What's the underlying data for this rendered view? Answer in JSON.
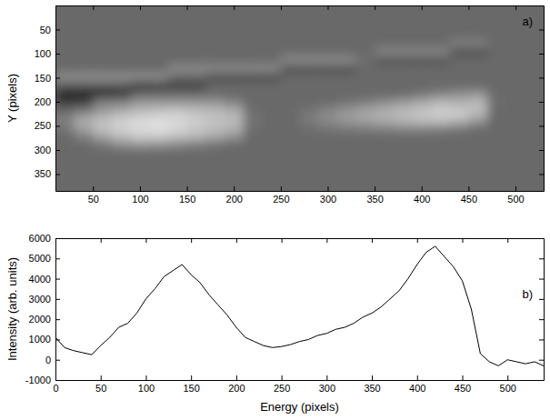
{
  "chart_data": [
    {
      "type": "image",
      "annotation": "a)",
      "ylabel": "Y (pixels)",
      "xlim": [
        10,
        530
      ],
      "ylim": [
        385,
        0
      ],
      "xticks": [
        50,
        100,
        150,
        200,
        250,
        300,
        350,
        400,
        450,
        500
      ],
      "yticks": [
        50,
        100,
        150,
        200,
        250,
        300,
        350
      ],
      "grid": false,
      "x_edges": [
        10,
        30,
        50,
        70,
        90,
        110,
        130,
        150,
        170,
        190,
        210,
        230,
        250,
        270,
        290,
        310,
        330,
        350,
        370,
        390,
        410,
        430,
        450,
        470,
        490,
        510,
        530
      ],
      "y_edges": [
        0,
        17.5,
        35,
        52.5,
        70,
        87.5,
        105,
        122.5,
        140,
        157.5,
        175,
        192.5,
        210,
        227.5,
        245,
        262.5,
        280,
        297.5,
        315,
        332.5,
        350,
        367.5,
        385
      ],
      "values": [
        [
          105,
          105,
          105,
          105,
          105,
          105,
          105,
          105,
          105,
          105,
          105,
          105,
          105,
          105,
          105,
          105,
          105,
          105,
          105,
          105,
          105,
          105,
          105,
          105,
          105,
          105
        ],
        [
          105,
          105,
          105,
          105,
          105,
          105,
          105,
          105,
          105,
          105,
          105,
          105,
          105,
          105,
          105,
          105,
          105,
          105,
          105,
          105,
          105,
          105,
          105,
          105,
          105,
          105
        ],
        [
          105,
          105,
          105,
          105,
          105,
          105,
          105,
          105,
          105,
          105,
          105,
          105,
          105,
          105,
          105,
          105,
          105,
          105,
          105,
          105,
          105,
          105,
          105,
          105,
          105,
          105
        ],
        [
          105,
          105,
          105,
          105,
          105,
          105,
          105,
          105,
          105,
          105,
          105,
          105,
          105,
          105,
          105,
          105,
          105,
          105,
          105,
          105,
          105,
          105,
          105,
          105,
          105,
          105
        ],
        [
          105,
          105,
          105,
          105,
          105,
          105,
          105,
          105,
          105,
          105,
          105,
          105,
          105,
          105,
          105,
          105,
          105,
          105,
          105,
          105,
          105,
          130,
          130,
          105,
          105,
          105
        ],
        [
          105,
          105,
          105,
          105,
          105,
          105,
          105,
          105,
          105,
          105,
          105,
          105,
          105,
          105,
          105,
          105,
          105,
          135,
          135,
          135,
          135,
          80,
          80,
          105,
          105,
          105
        ],
        [
          105,
          105,
          105,
          105,
          105,
          105,
          105,
          105,
          105,
          105,
          105,
          105,
          140,
          140,
          140,
          140,
          110,
          85,
          85,
          85,
          85,
          105,
          105,
          105,
          105,
          105
        ],
        [
          105,
          105,
          105,
          105,
          105,
          105,
          140,
          140,
          140,
          140,
          140,
          140,
          80,
          80,
          80,
          80,
          105,
          105,
          105,
          105,
          105,
          105,
          105,
          105,
          105,
          105
        ],
        [
          145,
          145,
          145,
          145,
          145,
          145,
          105,
          105,
          75,
          75,
          75,
          75,
          105,
          105,
          105,
          105,
          105,
          105,
          105,
          105,
          105,
          105,
          105,
          105,
          105,
          105
        ],
        [
          90,
          90,
          90,
          90,
          50,
          55,
          65,
          65,
          105,
          105,
          105,
          105,
          105,
          105,
          105,
          105,
          105,
          105,
          105,
          105,
          105,
          105,
          105,
          105,
          105,
          105
        ],
        [
          30,
          30,
          35,
          45,
          105,
          105,
          105,
          105,
          105,
          105,
          105,
          105,
          105,
          105,
          105,
          105,
          105,
          105,
          105,
          115,
          130,
          145,
          150,
          105,
          105,
          105
        ],
        [
          60,
          65,
          130,
          130,
          150,
          150,
          150,
          150,
          150,
          130,
          105,
          105,
          105,
          105,
          105,
          115,
          125,
          140,
          155,
          170,
          185,
          175,
          185,
          110,
          105,
          105
        ],
        [
          105,
          120,
          150,
          170,
          185,
          195,
          200,
          190,
          185,
          175,
          110,
          105,
          105,
          115,
          135,
          150,
          165,
          175,
          185,
          195,
          205,
          205,
          190,
          105,
          105,
          105
        ],
        [
          130,
          170,
          190,
          205,
          215,
          220,
          215,
          205,
          195,
          185,
          115,
          105,
          105,
          125,
          140,
          155,
          165,
          175,
          185,
          195,
          200,
          190,
          160,
          105,
          105,
          105
        ],
        [
          120,
          165,
          195,
          210,
          220,
          225,
          215,
          200,
          190,
          180,
          110,
          105,
          105,
          110,
          120,
          125,
          130,
          135,
          140,
          140,
          135,
          125,
          110,
          105,
          105,
          105
        ],
        [
          105,
          130,
          165,
          190,
          205,
          205,
          195,
          185,
          170,
          150,
          105,
          105,
          105,
          105,
          105,
          105,
          105,
          105,
          105,
          105,
          105,
          105,
          105,
          105,
          105,
          105
        ],
        [
          105,
          105,
          120,
          140,
          150,
          145,
          135,
          125,
          115,
          105,
          105,
          105,
          105,
          105,
          105,
          105,
          105,
          105,
          105,
          105,
          105,
          105,
          105,
          105,
          105,
          105
        ],
        [
          105,
          105,
          105,
          105,
          105,
          105,
          105,
          105,
          105,
          105,
          105,
          105,
          105,
          105,
          105,
          105,
          105,
          105,
          105,
          105,
          105,
          105,
          105,
          105,
          105,
          105
        ],
        [
          105,
          105,
          105,
          105,
          105,
          105,
          105,
          105,
          105,
          105,
          105,
          105,
          105,
          105,
          105,
          105,
          105,
          105,
          105,
          105,
          105,
          105,
          105,
          105,
          105,
          105
        ],
        [
          105,
          105,
          105,
          105,
          105,
          105,
          105,
          105,
          105,
          105,
          105,
          105,
          105,
          105,
          105,
          105,
          105,
          105,
          105,
          105,
          105,
          105,
          105,
          105,
          105,
          105
        ],
        [
          105,
          105,
          105,
          105,
          105,
          105,
          105,
          105,
          105,
          105,
          105,
          105,
          105,
          105,
          105,
          105,
          105,
          105,
          105,
          105,
          105,
          105,
          105,
          105,
          105,
          105
        ],
        [
          105,
          105,
          105,
          105,
          105,
          105,
          105,
          105,
          105,
          105,
          105,
          105,
          105,
          105,
          105,
          105,
          105,
          105,
          105,
          105,
          105,
          105,
          105,
          105,
          105,
          105
        ]
      ]
    },
    {
      "type": "line",
      "annotation": "b)",
      "xlabel": "Energy (pixels)",
      "ylabel": "Intensity (arb. units)",
      "color": "#000000",
      "xlim": [
        0,
        540
      ],
      "ylim": [
        -1000,
        6000
      ],
      "xticks": [
        0,
        50,
        100,
        150,
        200,
        250,
        300,
        350,
        400,
        450,
        500
      ],
      "yticks": [
        -1000,
        0,
        1000,
        2000,
        3000,
        4000,
        5000,
        6000
      ],
      "grid": false,
      "x": [
        0,
        10,
        20,
        30,
        40,
        50,
        60,
        70,
        80,
        90,
        100,
        110,
        120,
        130,
        140,
        150,
        160,
        170,
        180,
        190,
        200,
        210,
        220,
        230,
        240,
        250,
        260,
        270,
        280,
        290,
        300,
        310,
        320,
        330,
        340,
        350,
        360,
        370,
        380,
        390,
        400,
        410,
        420,
        430,
        440,
        450,
        460,
        470,
        480,
        490,
        500,
        510,
        520,
        530,
        540
      ],
      "values": [
        1100,
        600,
        450,
        350,
        250,
        700,
        1100,
        1600,
        1800,
        2300,
        3000,
        3500,
        4100,
        4400,
        4700,
        4200,
        3800,
        3200,
        2700,
        2200,
        1600,
        1100,
        900,
        700,
        600,
        650,
        750,
        900,
        1000,
        1200,
        1300,
        1500,
        1600,
        1800,
        2100,
        2300,
        2600,
        3000,
        3400,
        4000,
        4700,
        5300,
        5600,
        5100,
        4600,
        3900,
        2500,
        300,
        -100,
        -300,
        0,
        -100,
        -200,
        -100,
        -300
      ]
    }
  ]
}
